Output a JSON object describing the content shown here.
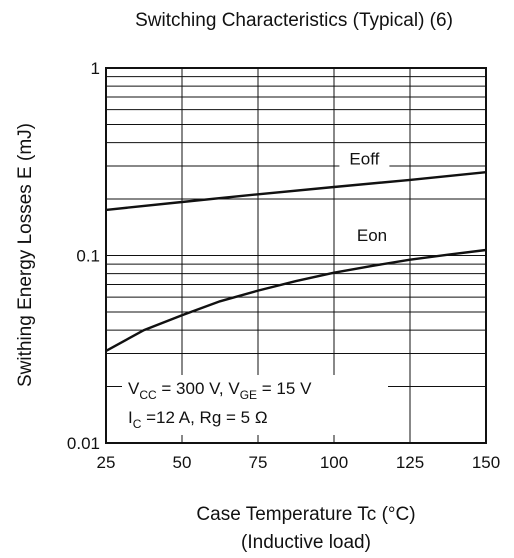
{
  "chart_data": {
    "type": "line",
    "title": "Switching Characteristics (Typical) (6)",
    "xlabel": "Case Temperature   Tc  (°C)",
    "xlabel_sub": "(Inductive load)",
    "ylabel": "Swithing Energy Losses   E   (mJ)",
    "xlim": [
      25,
      150
    ],
    "ylim": [
      0.01,
      1
    ],
    "yscale": "log",
    "grid": true,
    "x_ticks": [
      "25",
      "50",
      "75",
      "100",
      "125",
      "150"
    ],
    "y_ticks": [
      "0.01",
      "0.1",
      "1"
    ],
    "series": [
      {
        "name": "Eoff",
        "x": [
          25,
          50,
          75,
          100,
          125,
          150
        ],
        "y": [
          0.175,
          0.193,
          0.212,
          0.232,
          0.253,
          0.278
        ]
      },
      {
        "name": "Eon",
        "x": [
          25,
          37.5,
          50,
          62.5,
          75,
          87.5,
          100,
          112.5,
          125,
          137.5,
          150
        ],
        "y": [
          0.031,
          0.04,
          0.048,
          0.057,
          0.065,
          0.073,
          0.081,
          0.088,
          0.095,
          0.101,
          0.107
        ]
      }
    ],
    "conditions": {
      "line1": {
        "vcc_sym": "V",
        "vcc_sub": "CC",
        "vcc_val": " = 300 V, ",
        "vge_sym": "V",
        "vge_sub": "GE",
        "vge_val": " = 15 V"
      },
      "line2": {
        "ic_sym": "I",
        "ic_sub": "C",
        "ic_val": " =12 A, Rg = 5 Ω"
      }
    }
  }
}
